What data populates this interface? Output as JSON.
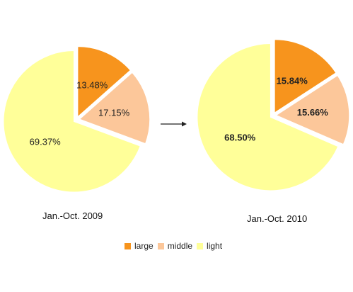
{
  "chart_data": [
    {
      "type": "pie",
      "caption": "Jan.-Oct. 2009",
      "label_style": "normal",
      "slices": [
        {
          "category": "large",
          "value": 13.48,
          "label": "13.48%"
        },
        {
          "category": "middle",
          "value": 17.15,
          "label": "17.15%"
        },
        {
          "category": "light",
          "value": 69.37,
          "label": "69.37%"
        }
      ]
    },
    {
      "type": "pie",
      "caption": "Jan.-Oct. 2010",
      "label_style": "bold",
      "slices": [
        {
          "category": "large",
          "value": 15.84,
          "label": "15.84%"
        },
        {
          "category": "middle",
          "value": 15.66,
          "label": "15.66%"
        },
        {
          "category": "light",
          "value": 68.5,
          "label": "68.50%"
        }
      ]
    }
  ],
  "legend": [
    {
      "key": "large",
      "label": "large",
      "color": "#f7941d"
    },
    {
      "key": "middle",
      "label": "middle",
      "color": "#fcc79a"
    },
    {
      "key": "light",
      "label": "light",
      "color": "#ffff99"
    }
  ],
  "arrow_icon": "right-arrow-icon"
}
